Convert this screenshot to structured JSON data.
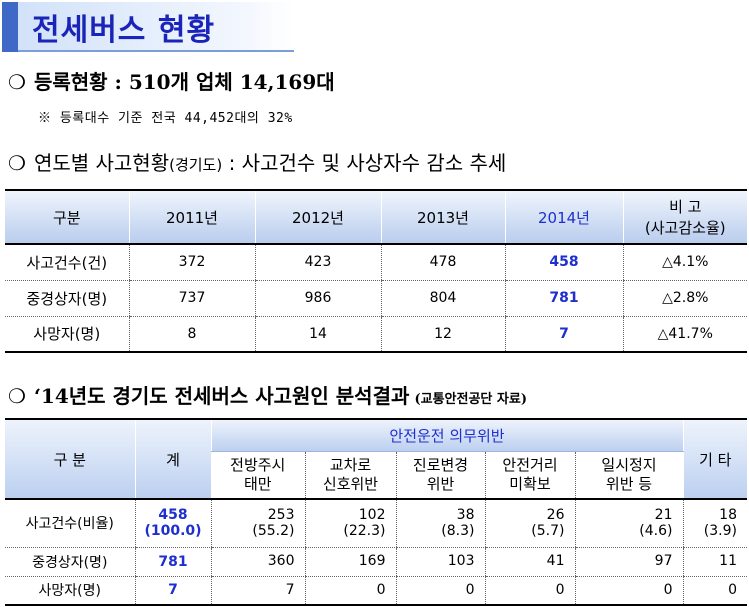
{
  "title": "전세버스 현황",
  "registration": {
    "bullet": "❍",
    "text": "등록현황 : 510개 업체 14,169대",
    "note": "※ 등록대수 기준 전국 44,452대의 32%"
  },
  "yearly": {
    "bullet": "❍",
    "heading_main": "연도별 사고현황",
    "heading_small": "(경기도)",
    "heading_rest": " : 사고건수 및 사상자수 감소 추세",
    "headers": [
      "구분",
      "2011년",
      "2012년",
      "2013년",
      "2014년"
    ],
    "note_header_line1": "비 고",
    "note_header_line2": "(사고감소율)",
    "rows": [
      {
        "label": "사고건수(건)",
        "y2011": "372",
        "y2012": "423",
        "y2013": "478",
        "y2014": "458",
        "note": "△4.1%"
      },
      {
        "label": "중경상자(명)",
        "y2011": "737",
        "y2012": "986",
        "y2013": "804",
        "y2014": "781",
        "note": "△2.8%"
      },
      {
        "label": "사망자(명)",
        "y2011": "8",
        "y2012": "14",
        "y2013": "12",
        "y2014": "7",
        "note": "△41.7%"
      }
    ]
  },
  "analysis": {
    "bullet": "❍",
    "heading": "‘14년도 경기도 전세버스 사고원인 분석결과",
    "source": "(교통안전공단 자료)",
    "header_category": "구 분",
    "header_total": "계",
    "header_group": "안전운전 의무위반",
    "header_other": "기 타",
    "sub_headers": [
      {
        "line1": "전방주시",
        "line2": "태만"
      },
      {
        "line1": "교차로",
        "line2": "신호위반"
      },
      {
        "line1": "진로변경",
        "line2": "위반"
      },
      {
        "line1": "안전거리",
        "line2": "미확보"
      },
      {
        "line1": "일시정지",
        "line2": "위반 등"
      }
    ],
    "rows": [
      {
        "label": "사고건수(비율)",
        "total": "458",
        "total_pct": "(100.0)",
        "values": [
          {
            "v": "253",
            "p": "(55.2)"
          },
          {
            "v": "102",
            "p": "(22.3)"
          },
          {
            "v": "38",
            "p": "(8.3)"
          },
          {
            "v": "26",
            "p": "(5.7)"
          },
          {
            "v": "21",
            "p": "(4.6)"
          }
        ],
        "other": {
          "v": "18",
          "p": "(3.9)"
        }
      },
      {
        "label": "중경상자(명)",
        "total": "781",
        "values": [
          "360",
          "169",
          "103",
          "41",
          "97"
        ],
        "other": "11"
      },
      {
        "label": "사망자(명)",
        "total": "7",
        "values": [
          "7",
          "0",
          "0",
          "0",
          "0"
        ],
        "other": "0"
      }
    ]
  }
}
